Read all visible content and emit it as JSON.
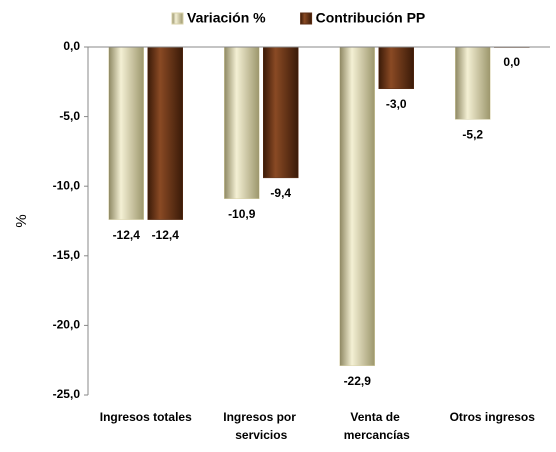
{
  "chart_data": {
    "type": "bar",
    "y_label": "%",
    "categories": [
      "Ingresos totales",
      "Ingresos por servicios",
      "Venta de mercancías",
      "Otros ingresos"
    ],
    "series": [
      {
        "name": "Variación %",
        "color": "#d8d2a8",
        "values": [
          -12.4,
          -10.9,
          -22.9,
          -5.2
        ],
        "value_labels": [
          "-12,4",
          "-10,9",
          "-22,9",
          "-5,2"
        ]
      },
      {
        "name": "Contribución PP",
        "color": "#5c2e14",
        "values": [
          -12.4,
          -9.4,
          -3.0,
          0.0
        ],
        "value_labels": [
          "-12,4",
          "-9,4",
          "-3,0",
          "0,0"
        ]
      }
    ],
    "ylim": [
      -25,
      0
    ],
    "yticks": [
      {
        "value": 0,
        "label": "0,0"
      },
      {
        "value": -5,
        "label": "-5,0"
      },
      {
        "value": -10,
        "label": "-10,0"
      },
      {
        "value": -15,
        "label": "-15,0"
      },
      {
        "value": -20,
        "label": "-20,0"
      },
      {
        "value": -25,
        "label": "-25,0"
      }
    ],
    "legend": "top"
  }
}
